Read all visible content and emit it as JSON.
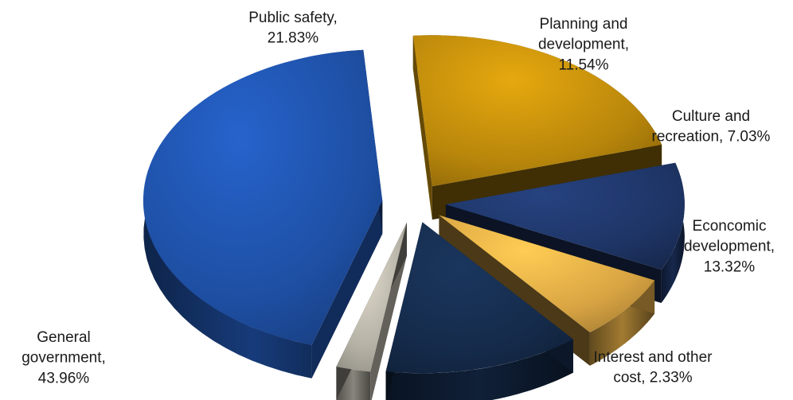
{
  "chart_data": {
    "type": "pie",
    "title": "",
    "style": "3d-exploded",
    "start": "clockwise from top",
    "slices": [
      {
        "label": "Public safety",
        "value": 21.83,
        "display": [
          "Public safety,",
          "21.83%"
        ],
        "color": "#b8860b"
      },
      {
        "label": "Planning and development",
        "value": 11.54,
        "display": [
          "Planning and",
          "development,",
          "11.54%"
        ],
        "color": "#1e3566"
      },
      {
        "label": "Culture and recreation",
        "value": 7.03,
        "display": [
          "Culture and",
          "recreation, 7.03%"
        ],
        "color": "#d8a443"
      },
      {
        "label": "Econcomic development",
        "value": 13.32,
        "display": [
          "Econcomic",
          "development,",
          "13.32%"
        ],
        "color": "#152b4b"
      },
      {
        "label": "Interest and other cost",
        "value": 2.33,
        "display": [
          "Interest and other",
          "cost, 2.33%"
        ],
        "color": "#b5b1a5"
      },
      {
        "label": "General government",
        "value": 43.96,
        "display": [
          "General",
          "government,",
          "43.96%"
        ],
        "color": "#1e4fa3"
      }
    ]
  }
}
